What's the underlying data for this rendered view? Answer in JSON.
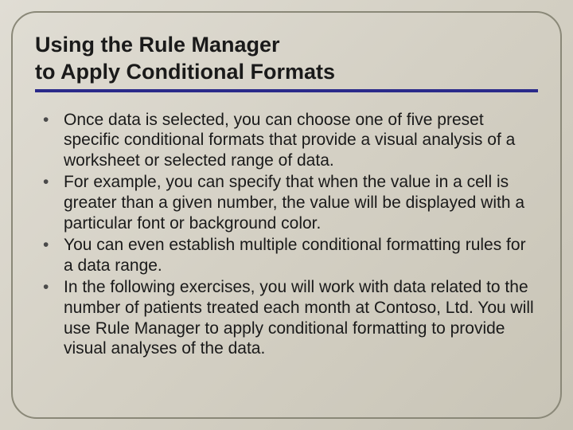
{
  "slide": {
    "title_line1": "Using the Rule Manager",
    "title_line2": "to Apply Conditional Formats",
    "bullets": [
      "Once data is selected, you can choose one of five preset specific conditional formats that provide a visual analysis of a worksheet or selected range of data.",
      "For example, you can specify that when the value in a cell is greater than a given number, the value will be displayed with a particular font or background color.",
      "You can even establish multiple conditional formatting rules for a data range.",
      "In the following exercises, you will work with data related to the number of patients treated each month at Contoso, Ltd. You will use Rule Manager to apply conditional formatting to provide visual analyses of the data."
    ]
  },
  "style": {
    "background_gradient_start": "#e0ddd4",
    "background_gradient_end": "#c8c4b6",
    "frame_border_color": "#8a8878",
    "frame_border_radius": 32,
    "title_fontsize": 27,
    "title_color": "#1a1a1a",
    "underline_color": "#2a2a8a",
    "underline_thickness": 4,
    "body_fontsize": 21,
    "body_color": "#1a1a1a",
    "bullet_color": "#4a4a4a"
  }
}
